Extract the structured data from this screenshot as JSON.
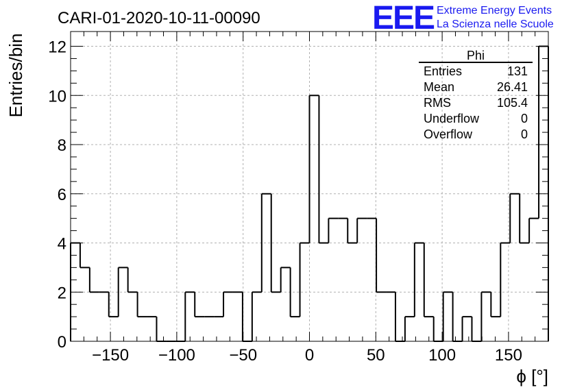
{
  "chart_data": {
    "type": "histogram",
    "title": "CARI-01-2020-10-11-00090",
    "xlabel": "ϕ [°]",
    "ylabel": "Entries/bin",
    "xlim": [
      -180,
      180
    ],
    "ylim": [
      0,
      12.6
    ],
    "x_ticks": [
      -150,
      -100,
      -50,
      0,
      50,
      100,
      150
    ],
    "x_tick_labels": [
      "−150",
      "−100",
      "−50",
      "0",
      "50",
      "100",
      "150"
    ],
    "y_ticks": [
      0,
      2,
      4,
      6,
      8,
      10,
      12
    ],
    "y_tick_labels": [
      "0",
      "2",
      "4",
      "6",
      "8",
      "10",
      "12"
    ],
    "bin_width": 7.2,
    "bin_low_edges": [
      -180,
      -172.8,
      -165.6,
      -158.4,
      -151.2,
      -144,
      -136.8,
      -129.6,
      -122.4,
      -115.2,
      -108,
      -100.8,
      -93.6,
      -86.4,
      -79.2,
      -72,
      -64.8,
      -57.6,
      -50.4,
      -43.2,
      -36,
      -28.8,
      -21.6,
      -14.4,
      -7.2,
      0,
      7.2,
      14.4,
      21.6,
      28.8,
      36,
      43.2,
      50.4,
      57.6,
      64.8,
      72,
      79.2,
      86.4,
      93.6,
      100.8,
      108,
      115.2,
      122.4,
      129.6,
      136.8,
      144,
      151.2,
      158.4,
      165.6,
      172.8
    ],
    "values": [
      4,
      3,
      2,
      2,
      1,
      3,
      2,
      1,
      1,
      0,
      0,
      0,
      2,
      1,
      1,
      1,
      2,
      2,
      0,
      2,
      6,
      2,
      3,
      1,
      4,
      10,
      4,
      5,
      5,
      4,
      5,
      5,
      2,
      2,
      0,
      1,
      4,
      1,
      0,
      2,
      0,
      1,
      0,
      2,
      1,
      4,
      6,
      4,
      5,
      12
    ],
    "grid": true,
    "color": "#000000"
  },
  "stats": {
    "title": "Phi",
    "rows": [
      {
        "label": "Entries",
        "value": "131"
      },
      {
        "label": "Mean",
        "value": "26.41"
      },
      {
        "label": "RMS",
        "value": "105.4"
      },
      {
        "label": "Underflow",
        "value": "0"
      },
      {
        "label": "Overflow",
        "value": "0"
      }
    ]
  },
  "logo": {
    "mark": "EEE",
    "line1": "Extreme Energy Events",
    "line2": "La Scienza nelle Scuole",
    "color": "#1a1af0"
  }
}
